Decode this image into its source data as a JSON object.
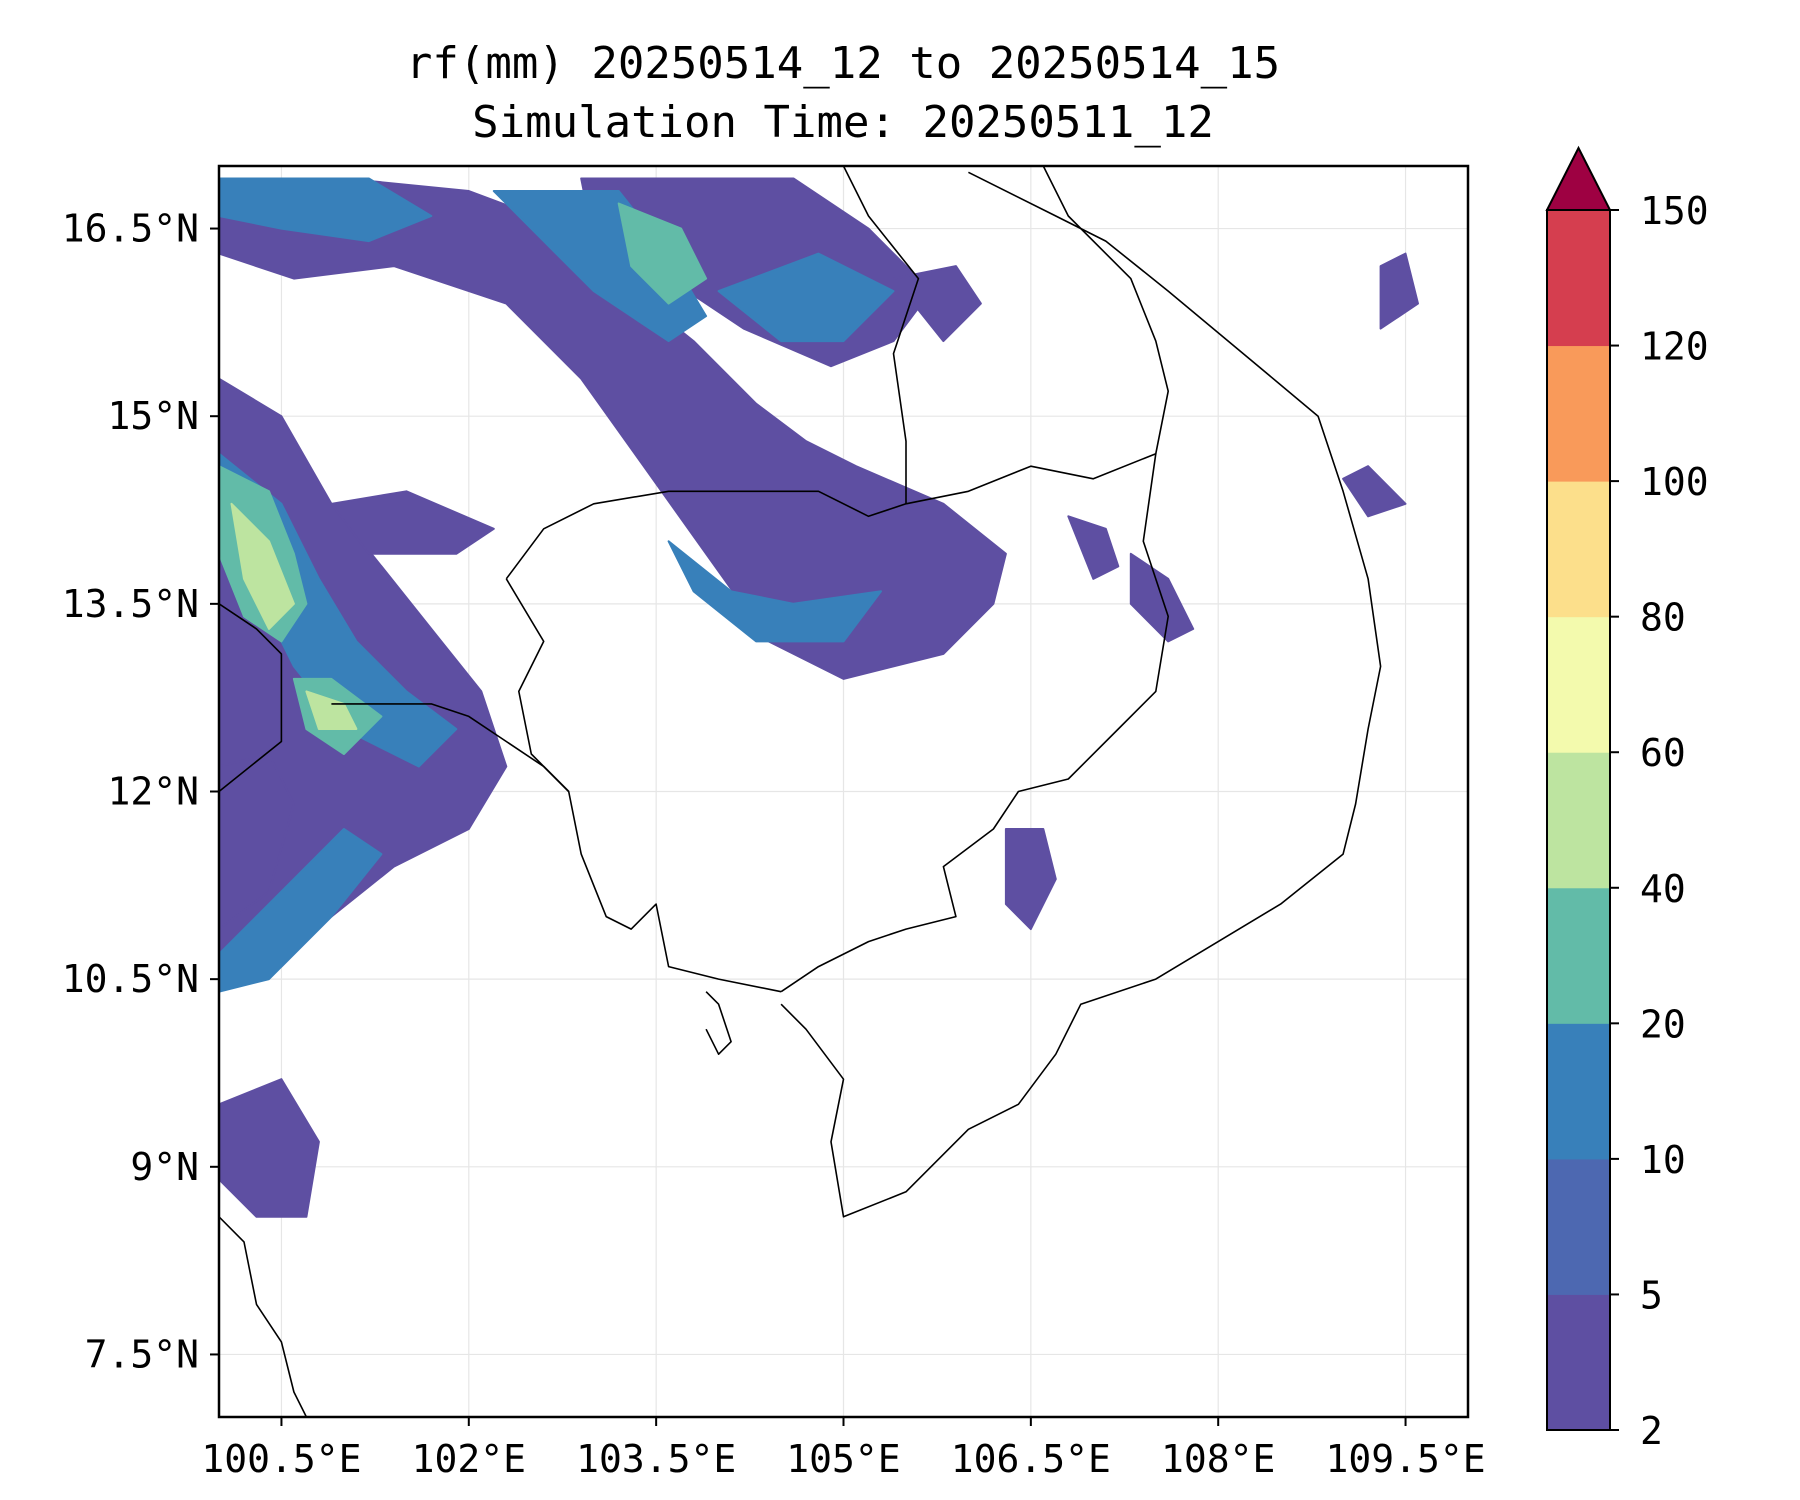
{
  "title": {
    "line1": "rf(mm) 20250514_12 to 20250514_15",
    "line2": "Simulation Time: 20250511_12"
  },
  "map": {
    "lon_range": [
      100.0,
      110.0
    ],
    "lat_range": [
      7.0,
      17.0
    ],
    "gridlines": true,
    "gridline_color": "#e6e6e6",
    "coastline_color": "#000000",
    "lon_ticks": [
      100.5,
      102,
      103.5,
      105,
      106.5,
      108,
      109.5
    ],
    "lat_ticks": [
      16.5,
      15,
      13.5,
      12,
      10.5,
      9,
      7.5
    ],
    "lon_tick_labels": [
      "100.5°E",
      "102°E",
      "103.5°E",
      "105°E",
      "106.5°E",
      "108°E",
      "109.5°E"
    ],
    "lat_tick_labels": [
      "16.5°N",
      "15°N",
      "13.5°N",
      "12°N",
      "10.5°N",
      "9°N",
      "7.5°N"
    ]
  },
  "colorbar": {
    "levels": [
      2,
      5,
      10,
      20,
      40,
      60,
      80,
      100,
      120,
      150
    ],
    "labels": [
      "2",
      "5",
      "10",
      "20",
      "40",
      "60",
      "80",
      "100",
      "120",
      "150"
    ],
    "colors": [
      "#5e4fa2",
      "#4d68b1",
      "#3880ba",
      "#62bba8",
      "#bde4a0",
      "#f3faad",
      "#fcdf8b",
      "#f99a5a",
      "#d53e4f",
      "#9e0142"
    ],
    "extend": "max"
  },
  "precip_zones": [
    {
      "level": 0,
      "pts": [
        [
          100.0,
          16.8
        ],
        [
          101.0,
          16.9
        ],
        [
          102.0,
          16.8
        ],
        [
          102.8,
          16.5
        ],
        [
          103.3,
          16.0
        ],
        [
          103.8,
          15.6
        ],
        [
          104.3,
          15.1
        ],
        [
          104.7,
          14.8
        ],
        [
          105.1,
          14.6
        ],
        [
          105.8,
          14.3
        ],
        [
          106.3,
          13.9
        ],
        [
          106.2,
          13.5
        ],
        [
          105.8,
          13.1
        ],
        [
          105.0,
          12.9
        ],
        [
          104.4,
          13.2
        ],
        [
          103.9,
          13.9
        ],
        [
          103.4,
          14.6
        ],
        [
          102.9,
          15.3
        ],
        [
          102.3,
          15.9
        ],
        [
          101.4,
          16.2
        ],
        [
          100.6,
          16.1
        ],
        [
          100.0,
          16.3
        ]
      ]
    },
    {
      "level": 0,
      "pts": [
        [
          102.9,
          16.9
        ],
        [
          104.6,
          16.9
        ],
        [
          105.2,
          16.5
        ],
        [
          105.7,
          16.0
        ],
        [
          105.4,
          15.6
        ],
        [
          104.9,
          15.4
        ],
        [
          104.2,
          15.7
        ],
        [
          103.6,
          16.1
        ],
        [
          103.0,
          16.4
        ]
      ]
    },
    {
      "level": 0,
      "pts": [
        [
          100.0,
          15.3
        ],
        [
          100.5,
          15.0
        ],
        [
          100.9,
          14.3
        ],
        [
          101.3,
          13.8
        ],
        [
          101.7,
          13.3
        ],
        [
          102.1,
          12.8
        ],
        [
          102.3,
          12.2
        ],
        [
          102.0,
          11.7
        ],
        [
          101.4,
          11.4
        ],
        [
          100.9,
          11.0
        ],
        [
          100.5,
          10.6
        ],
        [
          100.0,
          10.4
        ]
      ]
    },
    {
      "level": 0,
      "pts": [
        [
          100.9,
          14.3
        ],
        [
          101.5,
          14.4
        ],
        [
          102.2,
          14.1
        ],
        [
          101.9,
          13.9
        ],
        [
          101.2,
          13.9
        ]
      ]
    },
    {
      "level": 0,
      "pts": [
        [
          100.0,
          9.5
        ],
        [
          100.5,
          9.7
        ],
        [
          100.8,
          9.2
        ],
        [
          100.7,
          8.6
        ],
        [
          100.3,
          8.6
        ],
        [
          100.0,
          8.9
        ]
      ]
    },
    {
      "level": 0,
      "pts": [
        [
          106.3,
          11.7
        ],
        [
          106.6,
          11.7
        ],
        [
          106.7,
          11.3
        ],
        [
          106.5,
          10.9
        ],
        [
          106.3,
          11.1
        ]
      ]
    },
    {
      "level": 0,
      "pts": [
        [
          106.8,
          14.2
        ],
        [
          107.1,
          14.1
        ],
        [
          107.2,
          13.8
        ],
        [
          107.0,
          13.7
        ]
      ]
    },
    {
      "level": 0,
      "pts": [
        [
          107.3,
          13.9
        ],
        [
          107.6,
          13.7
        ],
        [
          107.8,
          13.3
        ],
        [
          107.6,
          13.2
        ],
        [
          107.3,
          13.5
        ]
      ]
    },
    {
      "level": 0,
      "pts": [
        [
          109.0,
          14.5
        ],
        [
          109.2,
          14.6
        ],
        [
          109.5,
          14.3
        ],
        [
          109.2,
          14.2
        ]
      ]
    },
    {
      "level": 0,
      "pts": [
        [
          109.3,
          16.2
        ],
        [
          109.5,
          16.3
        ],
        [
          109.6,
          15.9
        ],
        [
          109.3,
          15.7
        ]
      ]
    },
    {
      "level": 0,
      "pts": [
        [
          105.4,
          16.1
        ],
        [
          105.9,
          16.2
        ],
        [
          106.1,
          15.9
        ],
        [
          105.8,
          15.6
        ]
      ]
    },
    {
      "level": 0,
      "pts": [
        [
          100.0,
          12.2
        ],
        [
          100.4,
          12.3
        ],
        [
          100.6,
          11.9
        ],
        [
          100.4,
          11.2
        ],
        [
          100.0,
          10.9
        ]
      ]
    },
    {
      "level": 2,
      "pts": [
        [
          100.0,
          16.9
        ],
        [
          101.2,
          16.9
        ],
        [
          101.7,
          16.6
        ],
        [
          101.2,
          16.4
        ],
        [
          100.5,
          16.5
        ],
        [
          100.0,
          16.6
        ]
      ]
    },
    {
      "level": 2,
      "pts": [
        [
          102.2,
          16.8
        ],
        [
          103.2,
          16.8
        ],
        [
          103.6,
          16.3
        ],
        [
          103.9,
          15.8
        ],
        [
          103.6,
          15.6
        ],
        [
          103.0,
          16.0
        ],
        [
          102.6,
          16.4
        ]
      ]
    },
    {
      "level": 2,
      "pts": [
        [
          104.0,
          16.0
        ],
        [
          104.8,
          16.3
        ],
        [
          105.4,
          16.0
        ],
        [
          105.0,
          15.6
        ],
        [
          104.5,
          15.6
        ]
      ]
    },
    {
      "level": 2,
      "pts": [
        [
          103.6,
          14.0
        ],
        [
          104.1,
          13.6
        ],
        [
          104.6,
          13.5
        ],
        [
          105.3,
          13.6
        ],
        [
          105.0,
          13.2
        ],
        [
          104.3,
          13.2
        ],
        [
          103.8,
          13.6
        ]
      ]
    },
    {
      "level": 2,
      "pts": [
        [
          100.0,
          14.7
        ],
        [
          100.5,
          14.3
        ],
        [
          100.8,
          13.7
        ],
        [
          101.1,
          13.2
        ],
        [
          101.5,
          12.8
        ],
        [
          101.9,
          12.5
        ],
        [
          101.6,
          12.2
        ],
        [
          101.0,
          12.5
        ],
        [
          100.6,
          13.0
        ],
        [
          100.3,
          13.6
        ],
        [
          100.0,
          14.0
        ]
      ]
    },
    {
      "level": 2,
      "pts": [
        [
          100.0,
          10.7
        ],
        [
          100.5,
          11.2
        ],
        [
          101.0,
          11.7
        ],
        [
          101.3,
          11.5
        ],
        [
          100.9,
          11.0
        ],
        [
          100.4,
          10.5
        ],
        [
          100.0,
          10.4
        ]
      ]
    },
    {
      "level": 3,
      "pts": [
        [
          100.0,
          14.6
        ],
        [
          100.4,
          14.4
        ],
        [
          100.6,
          13.9
        ],
        [
          100.7,
          13.5
        ],
        [
          100.5,
          13.2
        ],
        [
          100.2,
          13.4
        ],
        [
          100.0,
          13.9
        ]
      ]
    },
    {
      "level": 3,
      "pts": [
        [
          100.6,
          12.9
        ],
        [
          100.9,
          12.9
        ],
        [
          101.3,
          12.6
        ],
        [
          101.0,
          12.3
        ],
        [
          100.7,
          12.5
        ]
      ]
    },
    {
      "level": 3,
      "pts": [
        [
          103.2,
          16.7
        ],
        [
          103.7,
          16.5
        ],
        [
          103.9,
          16.1
        ],
        [
          103.6,
          15.9
        ],
        [
          103.3,
          16.2
        ]
      ]
    },
    {
      "level": 4,
      "pts": [
        [
          100.1,
          14.3
        ],
        [
          100.4,
          14.0
        ],
        [
          100.6,
          13.5
        ],
        [
          100.4,
          13.3
        ],
        [
          100.2,
          13.7
        ]
      ]
    },
    {
      "level": 4,
      "pts": [
        [
          100.7,
          12.8
        ],
        [
          101.0,
          12.7
        ],
        [
          101.1,
          12.5
        ],
        [
          100.8,
          12.5
        ]
      ]
    }
  ],
  "coastlines": [
    {
      "name": "vietnam-coast",
      "pts": [
        [
          106.0,
          16.95
        ],
        [
          106.7,
          16.6
        ],
        [
          107.1,
          16.4
        ],
        [
          107.6,
          16.0
        ],
        [
          108.2,
          15.5
        ],
        [
          108.8,
          15.0
        ],
        [
          109.0,
          14.4
        ],
        [
          109.2,
          13.7
        ],
        [
          109.3,
          13.0
        ],
        [
          109.2,
          12.5
        ],
        [
          109.1,
          11.9
        ],
        [
          109.0,
          11.5
        ],
        [
          108.5,
          11.1
        ],
        [
          108.0,
          10.8
        ],
        [
          107.5,
          10.5
        ],
        [
          106.9,
          10.3
        ],
        [
          106.7,
          9.9
        ],
        [
          106.4,
          9.5
        ],
        [
          106.0,
          9.3
        ],
        [
          105.5,
          8.8
        ],
        [
          105.0,
          8.6
        ],
        [
          104.9,
          9.2
        ],
        [
          105.0,
          9.7
        ],
        [
          104.7,
          10.1
        ],
        [
          104.5,
          10.3
        ]
      ]
    },
    {
      "name": "cambodia-coast",
      "pts": [
        [
          104.5,
          10.4
        ],
        [
          104.0,
          10.5
        ],
        [
          103.6,
          10.6
        ],
        [
          103.5,
          11.1
        ],
        [
          103.3,
          10.9
        ],
        [
          103.1,
          11.0
        ],
        [
          102.9,
          11.5
        ],
        [
          102.8,
          12.0
        ],
        [
          102.6,
          12.2
        ],
        [
          102.3,
          12.4
        ],
        [
          102.0,
          12.6
        ],
        [
          101.7,
          12.7
        ],
        [
          101.2,
          12.7
        ],
        [
          100.9,
          12.7
        ]
      ]
    },
    {
      "name": "thai-gulf-west-coast",
      "pts": [
        [
          100.0,
          13.5
        ],
        [
          100.3,
          13.3
        ],
        [
          100.5,
          13.1
        ],
        [
          100.5,
          12.8
        ],
        [
          100.5,
          12.4
        ],
        [
          100.0,
          12.0
        ]
      ]
    },
    {
      "name": "malay-peninsula",
      "pts": [
        [
          100.0,
          8.6
        ],
        [
          100.2,
          8.4
        ],
        [
          100.3,
          7.9
        ],
        [
          100.5,
          7.6
        ],
        [
          100.6,
          7.2
        ],
        [
          100.7,
          7.0
        ]
      ]
    },
    {
      "name": "phu-quoc",
      "pts": [
        [
          103.9,
          10.4
        ],
        [
          104.0,
          10.3
        ],
        [
          104.1,
          10.0
        ],
        [
          104.0,
          9.9
        ],
        [
          103.9,
          10.1
        ]
      ]
    },
    {
      "name": "thailand-cambodia-border",
      "pts": [
        [
          102.3,
          13.7
        ],
        [
          102.6,
          14.1
        ],
        [
          103.0,
          14.3
        ],
        [
          103.6,
          14.4
        ],
        [
          104.2,
          14.4
        ],
        [
          104.8,
          14.4
        ],
        [
          105.2,
          14.2
        ],
        [
          105.5,
          14.3
        ]
      ]
    },
    {
      "name": "cambodia-west-border",
      "pts": [
        [
          102.3,
          13.7
        ],
        [
          102.6,
          13.2
        ],
        [
          102.4,
          12.8
        ],
        [
          102.5,
          12.3
        ],
        [
          102.8,
          12.0
        ]
      ]
    },
    {
      "name": "cambodia-vietnam-border",
      "pts": [
        [
          105.5,
          14.3
        ],
        [
          106.0,
          14.4
        ],
        [
          106.5,
          14.6
        ],
        [
          107.0,
          14.5
        ],
        [
          107.5,
          14.7
        ],
        [
          107.4,
          14.0
        ],
        [
          107.6,
          13.4
        ],
        [
          107.5,
          12.8
        ],
        [
          107.2,
          12.5
        ],
        [
          106.8,
          12.1
        ],
        [
          106.4,
          12.0
        ],
        [
          106.2,
          11.7
        ],
        [
          105.8,
          11.4
        ],
        [
          105.9,
          11.0
        ],
        [
          105.5,
          10.9
        ],
        [
          105.2,
          10.8
        ],
        [
          104.8,
          10.6
        ],
        [
          104.5,
          10.4
        ]
      ]
    },
    {
      "name": "laos-vietnam-border",
      "pts": [
        [
          106.6,
          17.0
        ],
        [
          106.8,
          16.6
        ],
        [
          107.3,
          16.1
        ],
        [
          107.5,
          15.6
        ],
        [
          107.6,
          15.2
        ],
        [
          107.5,
          14.7
        ]
      ]
    },
    {
      "name": "laos-thailand-border",
      "pts": [
        [
          105.0,
          17.0
        ],
        [
          105.2,
          16.6
        ],
        [
          105.6,
          16.1
        ],
        [
          105.4,
          15.5
        ],
        [
          105.5,
          14.8
        ],
        [
          105.5,
          14.3
        ]
      ]
    }
  ]
}
